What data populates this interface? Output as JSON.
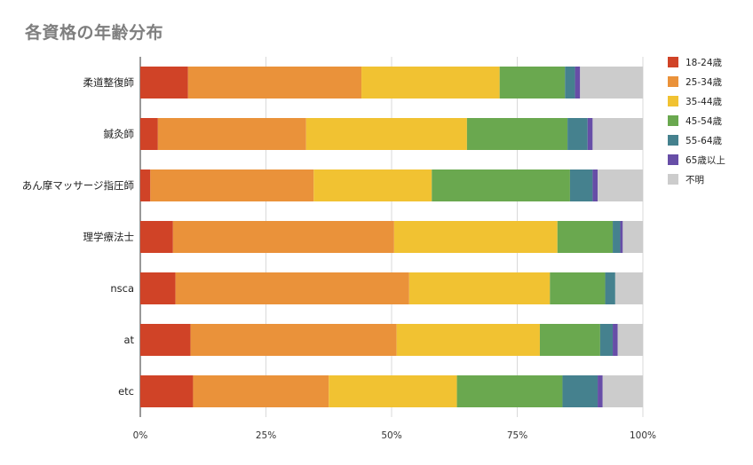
{
  "chart_data": {
    "type": "bar",
    "orientation": "horizontal",
    "stacked": "percent",
    "title": "各資格の年齢分布",
    "categories": [
      "柔道整復師",
      "鍼灸師",
      "あん摩マッサージ指圧師",
      "理学療法士",
      "nsca",
      "at",
      "etc"
    ],
    "series": [
      {
        "name": "18-24歳",
        "color": "#d04327",
        "values": [
          9.5,
          3.5,
          2.0,
          6.5,
          7.0,
          10.0,
          10.5
        ]
      },
      {
        "name": "25-34歳",
        "color": "#ea923a",
        "values": [
          34.5,
          29.5,
          32.5,
          44.0,
          46.5,
          41.0,
          27.0
        ]
      },
      {
        "name": "35-44歳",
        "color": "#f1c232",
        "values": [
          27.5,
          32.0,
          23.5,
          32.5,
          28.0,
          28.5,
          25.5
        ]
      },
      {
        "name": "45-54歳",
        "color": "#6aa84f",
        "values": [
          13.0,
          20.0,
          27.5,
          11.0,
          11.0,
          12.0,
          21.0
        ]
      },
      {
        "name": "55-64歳",
        "color": "#45818e",
        "values": [
          2.0,
          4.0,
          4.5,
          1.5,
          2.0,
          2.5,
          7.0
        ]
      },
      {
        "name": "65歳以上",
        "color": "#674ea7",
        "values": [
          1.0,
          1.0,
          1.0,
          0.5,
          0.0,
          1.0,
          1.0
        ]
      },
      {
        "name": "不明",
        "color": "#cccccc",
        "values": [
          12.5,
          10.0,
          9.0,
          4.0,
          5.5,
          5.0,
          8.0
        ]
      }
    ],
    "x_ticks": [
      "0%",
      "25%",
      "50%",
      "75%",
      "100%"
    ],
    "xlim": [
      0,
      100
    ],
    "xlabel": "",
    "ylabel": "",
    "grid": true,
    "legend": "right"
  }
}
